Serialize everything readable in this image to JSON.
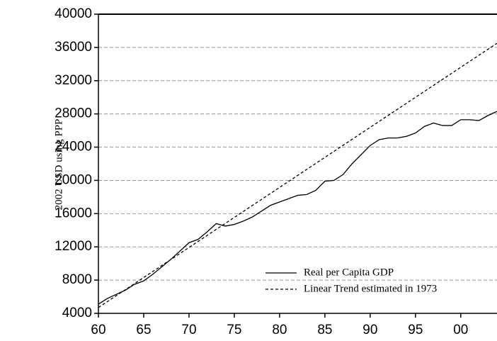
{
  "chart_data": {
    "type": "line",
    "y_label": "2002 USD using PPP",
    "xlim": [
      1960,
      2004
    ],
    "xticks": [
      {
        "value": 1960,
        "label": "60"
      },
      {
        "value": 1965,
        "label": "65"
      },
      {
        "value": 1970,
        "label": "70"
      },
      {
        "value": 1975,
        "label": "75"
      },
      {
        "value": 1980,
        "label": "80"
      },
      {
        "value": 1985,
        "label": "85"
      },
      {
        "value": 1990,
        "label": "90"
      },
      {
        "value": 1995,
        "label": "95"
      },
      {
        "value": 2000,
        "label": "00"
      }
    ],
    "ylim": [
      4000,
      40000
    ],
    "yticks": [
      4000,
      8000,
      12000,
      16000,
      20000,
      24000,
      28000,
      32000,
      36000,
      40000
    ],
    "grid": true,
    "legend": "lower right",
    "series": [
      {
        "name": "Real per Capita GDP",
        "color": "#000000",
        "dash": "solid",
        "x": [
          1960,
          1961,
          1962,
          1963,
          1964,
          1965,
          1966,
          1967,
          1968,
          1969,
          1970,
          1971,
          1972,
          1973,
          1974,
          1975,
          1976,
          1977,
          1978,
          1979,
          1980,
          1981,
          1982,
          1983,
          1984,
          1985,
          1986,
          1987,
          1988,
          1989,
          1990,
          1991,
          1992,
          1993,
          1994,
          1995,
          1996,
          1997,
          1998,
          1999,
          2000,
          2001,
          2002,
          2003,
          2004
        ],
        "values": [
          5100,
          5800,
          6300,
          6800,
          7500,
          7900,
          8700,
          9600,
          10500,
          11500,
          12500,
          12900,
          13800,
          14800,
          14500,
          14700,
          15100,
          15600,
          16300,
          17000,
          17400,
          17800,
          18200,
          18300,
          18800,
          19900,
          20000,
          20700,
          22000,
          23100,
          24200,
          24900,
          25100,
          25100,
          25300,
          25700,
          26500,
          26900,
          26600,
          26600,
          27300,
          27300,
          27200,
          27800,
          28300
        ]
      },
      {
        "name": "Linear Trend estimated in 1973",
        "color": "#000000",
        "dash": "dashed",
        "x": [
          1960,
          2004
        ],
        "values": [
          4700,
          36500
        ]
      }
    ]
  }
}
